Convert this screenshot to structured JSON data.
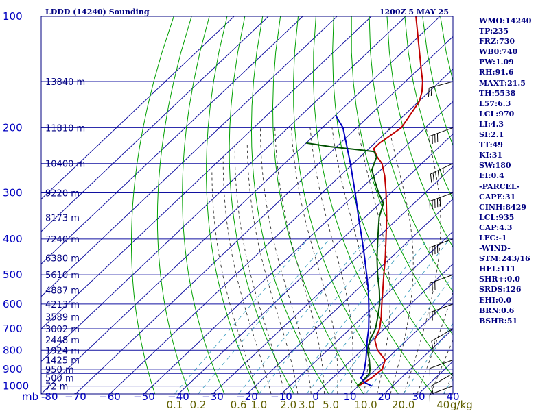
{
  "header": {
    "station_title": "LDDD (14240) Sounding",
    "datetime": "1200Z  5 MAY 25"
  },
  "colors": {
    "background": "#ffffff",
    "frame": "#000080",
    "isobar": "#1010a0",
    "isotherm": "#1010a0",
    "dry_adiabat": "#00a000",
    "moist_adiabat": "#303030",
    "mixing_ratio": "#40a0c0",
    "temperature": "#c00000",
    "dewpoint": "#005000",
    "parcel": "#0000c0",
    "pressure_label": "#0000c0",
    "height_label": "#000080",
    "temp_label": "#0000c0",
    "mixing_label": "#606000",
    "wind_barb": "#000000"
  },
  "chart_data": {
    "type": "line",
    "title": "LDDD (14240) Sounding",
    "xlabel": "",
    "ylabel": "mb",
    "x_unit": "degC",
    "y_unit": "mb",
    "xlim": [
      -80,
      40
    ],
    "ylim": [
      1050,
      100
    ],
    "y_scale": "log",
    "grid": true,
    "pressure_levels": [
      {
        "p": 100,
        "label": "100"
      },
      {
        "p": 200,
        "label": "200"
      },
      {
        "p": 300,
        "label": "300"
      },
      {
        "p": 400,
        "label": "400"
      },
      {
        "p": 500,
        "label": "500"
      },
      {
        "p": 600,
        "label": "600"
      },
      {
        "p": 700,
        "label": "700"
      },
      {
        "p": 800,
        "label": "800"
      },
      {
        "p": 900,
        "label": "900"
      },
      {
        "p": 1000,
        "label": "1000"
      }
    ],
    "minor_isobars": [
      150,
      250,
      850,
      925
    ],
    "height_labels": [
      {
        "p": 150,
        "label": "13840 m"
      },
      {
        "p": 200,
        "label": "11810 m"
      },
      {
        "p": 250,
        "label": "10400 m"
      },
      {
        "p": 300,
        "label": "9220 m"
      },
      {
        "p": 350,
        "label": "8173 m"
      },
      {
        "p": 400,
        "label": "7240 m"
      },
      {
        "p": 450,
        "label": "6380 m"
      },
      {
        "p": 500,
        "label": "5610 m"
      },
      {
        "p": 550,
        "label": "4887 m"
      },
      {
        "p": 600,
        "label": "4213 m"
      },
      {
        "p": 650,
        "label": "3589 m"
      },
      {
        "p": 700,
        "label": "3002 m"
      },
      {
        "p": 750,
        "label": "2448 m"
      },
      {
        "p": 800,
        "label": "1924 m"
      },
      {
        "p": 850,
        "label": "1425 m"
      },
      {
        "p": 900,
        "label": "950 m"
      },
      {
        "p": 950,
        "label": "500 m"
      },
      {
        "p": 1000,
        "label": "72 m"
      }
    ],
    "x_tick_labels": [
      {
        "t": -80,
        "label": "-80"
      },
      {
        "t": -70,
        "label": "−70"
      },
      {
        "t": -60,
        "label": "−60"
      },
      {
        "t": -50,
        "label": "−50"
      },
      {
        "t": -40,
        "label": "−40"
      },
      {
        "t": -30,
        "label": "−30"
      },
      {
        "t": -20,
        "label": "−20"
      },
      {
        "t": -10,
        "label": "−10"
      },
      {
        "t": 0,
        "label": "0"
      },
      {
        "t": 10,
        "label": "10"
      },
      {
        "t": 20,
        "label": "20"
      },
      {
        "t": 30,
        "label": "30"
      },
      {
        "t": 40,
        "label": "40"
      }
    ],
    "mixing_ratio_labels": [
      {
        "w": 0.1,
        "label": "0.1"
      },
      {
        "w": 0.2,
        "label": "0.2"
      },
      {
        "w": 0.6,
        "label": "0.6"
      },
      {
        "w": 1.0,
        "label": "1.0"
      },
      {
        "w": 2.0,
        "label": "2.0"
      },
      {
        "w": 3.0,
        "label": "3.0"
      },
      {
        "w": 5.0,
        "label": "5.0"
      },
      {
        "w": 10.0,
        "label": "10.0"
      },
      {
        "w": 20.0,
        "label": "20.0"
      },
      {
        "w": 40.0,
        "label": "40"
      }
    ],
    "mixing_ratio_unit": "g/kg",
    "series": [
      {
        "name": "",
        "role": "temperature",
        "points": [
          {
            "p": 1000,
            "t": 10.0
          },
          {
            "p": 980,
            "t": 10.6
          },
          {
            "p": 950,
            "t": 11.4
          },
          {
            "p": 925,
            "t": 11.6
          },
          {
            "p": 900,
            "t": 11.8
          },
          {
            "p": 850,
            "t": 9.8
          },
          {
            "p": 830,
            "t": 7.8
          },
          {
            "p": 800,
            "t": 4.6
          },
          {
            "p": 750,
            "t": 0.6
          },
          {
            "p": 700,
            "t": -1.4
          },
          {
            "p": 650,
            "t": -4.6
          },
          {
            "p": 600,
            "t": -8.4
          },
          {
            "p": 550,
            "t": -12.4
          },
          {
            "p": 500,
            "t": -16.8
          },
          {
            "p": 450,
            "t": -21.6
          },
          {
            "p": 400,
            "t": -27.2
          },
          {
            "p": 350,
            "t": -33.6
          },
          {
            "p": 300,
            "t": -41.4
          },
          {
            "p": 270,
            "t": -47.0
          },
          {
            "p": 250,
            "t": -51.6
          },
          {
            "p": 240,
            "t": -55.0
          },
          {
            "p": 228,
            "t": -58.6
          },
          {
            "p": 220,
            "t": -58.6
          },
          {
            "p": 200,
            "t": -57.0
          },
          {
            "p": 180,
            "t": -58.8
          },
          {
            "p": 170,
            "t": -59.8
          },
          {
            "p": 160,
            "t": -62.0
          },
          {
            "p": 150,
            "t": -65.0
          },
          {
            "p": 140,
            "t": -68.8
          },
          {
            "p": 130,
            "t": -72.8
          },
          {
            "p": 100,
            "t": -87.0
          }
        ]
      },
      {
        "name": "",
        "role": "dewpoint",
        "points": [
          {
            "p": 1000,
            "t": 9.6
          },
          {
            "p": 980,
            "t": 9.8
          },
          {
            "p": 950,
            "t": 9.6
          },
          {
            "p": 925,
            "t": 9.4
          },
          {
            "p": 900,
            "t": 8.2
          },
          {
            "p": 850,
            "t": 5.2
          },
          {
            "p": 800,
            "t": 1.6
          },
          {
            "p": 750,
            "t": -0.8
          },
          {
            "p": 700,
            "t": -2.6
          },
          {
            "p": 650,
            "t": -5.6
          },
          {
            "p": 600,
            "t": -9.0
          },
          {
            "p": 550,
            "t": -13.4
          },
          {
            "p": 500,
            "t": -18.6
          },
          {
            "p": 450,
            "t": -24.0
          },
          {
            "p": 400,
            "t": -29.6
          },
          {
            "p": 350,
            "t": -35.8
          },
          {
            "p": 320,
            "t": -39.0
          },
          {
            "p": 300,
            "t": -43.6
          },
          {
            "p": 280,
            "t": -48.0
          },
          {
            "p": 260,
            "t": -52.6
          },
          {
            "p": 240,
            "t": -55.2
          },
          {
            "p": 232,
            "t": -57.6
          },
          {
            "p": 225,
            "t": -72.0
          },
          {
            "p": 220,
            "t": -80.0
          }
        ]
      },
      {
        "name": "",
        "role": "parcel",
        "points": [
          {
            "p": 1000,
            "t": 14.0
          },
          {
            "p": 980,
            "t": 11.0
          },
          {
            "p": 950,
            "t": 8.2
          },
          {
            "p": 935,
            "t": 8.0
          },
          {
            "p": 900,
            "t": 6.6
          },
          {
            "p": 850,
            "t": 4.2
          },
          {
            "p": 800,
            "t": 1.4
          },
          {
            "p": 750,
            "t": -1.6
          },
          {
            "p": 700,
            "t": -4.6
          },
          {
            "p": 650,
            "t": -8.2
          },
          {
            "p": 600,
            "t": -12.2
          },
          {
            "p": 550,
            "t": -16.6
          },
          {
            "p": 500,
            "t": -21.8
          },
          {
            "p": 450,
            "t": -27.6
          },
          {
            "p": 400,
            "t": -34.2
          },
          {
            "p": 350,
            "t": -41.8
          },
          {
            "p": 300,
            "t": -50.4
          },
          {
            "p": 250,
            "t": -60.8
          },
          {
            "p": 200,
            "t": -74.0
          },
          {
            "p": 185,
            "t": -80.0
          }
        ]
      }
    ],
    "wind_barbs": [
      {
        "p": 1000,
        "dir": 250,
        "spd": 10
      },
      {
        "p": 925,
        "dir": 240,
        "spd": 10
      },
      {
        "p": 850,
        "dir": 250,
        "spd": 10
      },
      {
        "p": 700,
        "dir": 240,
        "spd": 15
      },
      {
        "p": 600,
        "dir": 250,
        "spd": 25
      },
      {
        "p": 500,
        "dir": 250,
        "spd": 30
      },
      {
        "p": 400,
        "dir": 250,
        "spd": 40
      },
      {
        "p": 300,
        "dir": 250,
        "spd": 50
      },
      {
        "p": 250,
        "dir": 245,
        "spd": 55
      },
      {
        "p": 200,
        "dir": 250,
        "spd": 40
      },
      {
        "p": 150,
        "dir": 255,
        "spd": 25
      }
    ]
  },
  "indices": [
    "WMO:14240",
    "TP:235",
    "FRZ:730",
    "WB0:740",
    "PW:1.09",
    "RH:91.6",
    "MAXT:21.5",
    "TH:5538",
    "L57:6.3",
    "LCL:970",
    "LI:4.3",
    "SI:2.1",
    "TT:49",
    "KI:31",
    "SW:180",
    "EI:0.4",
    "-PARCEL-",
    "CAPE:31",
    "CINH:8429",
    "LCL:935",
    "CAP:4.3",
    "LFC:-1",
    "-WIND-",
    "STM:243/16",
    "HEL:111",
    "SHR+:0.0",
    "SRDS:126",
    "EHI:0.0",
    "BRN:0.6",
    "BSHR:51"
  ]
}
